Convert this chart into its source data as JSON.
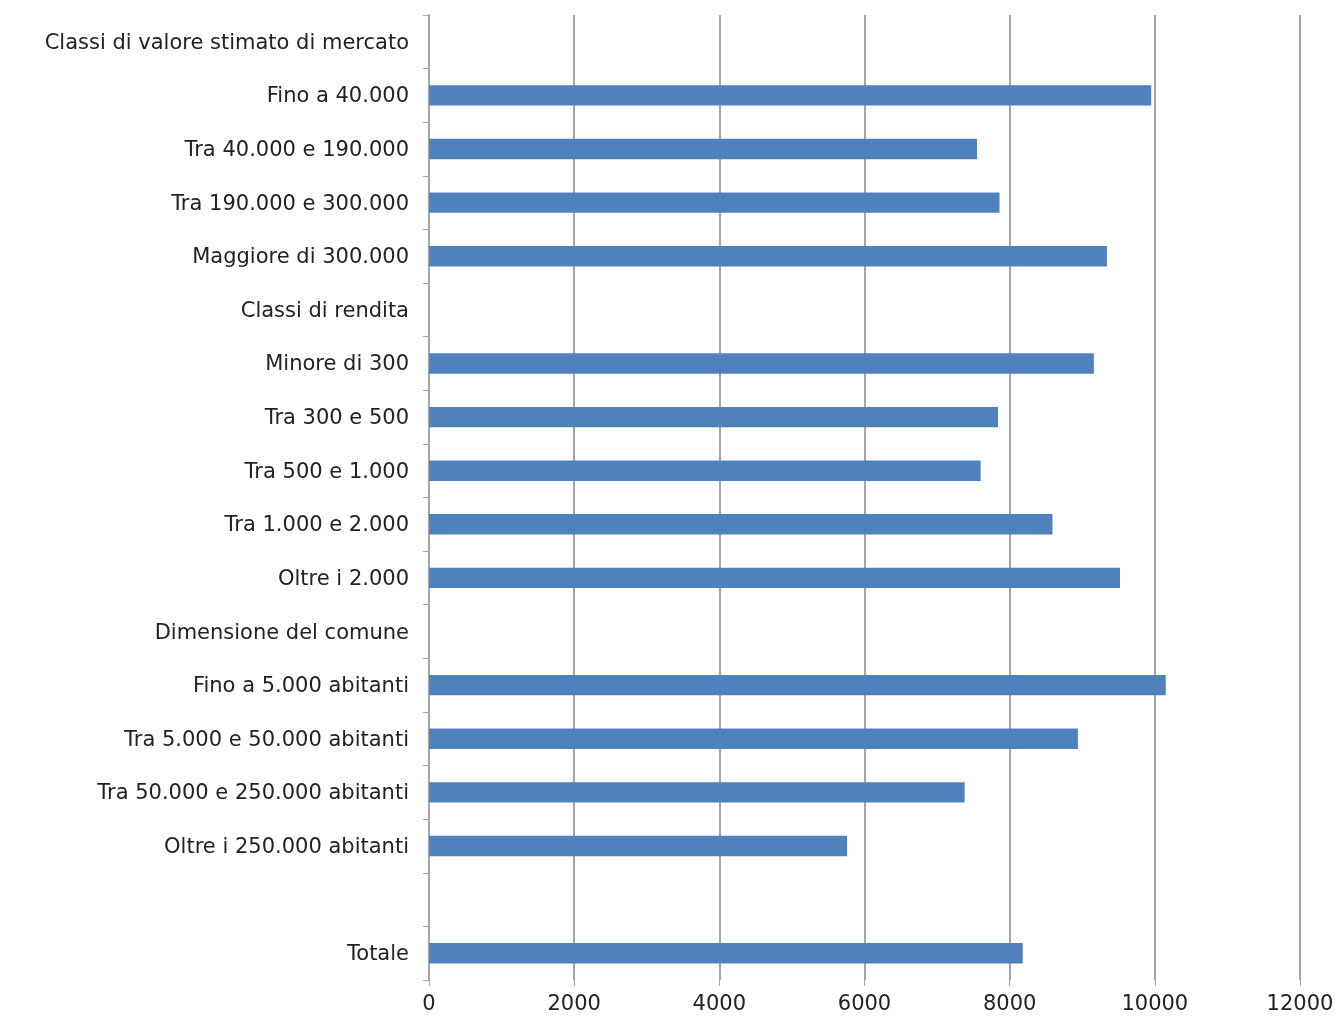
{
  "chart_data": {
    "type": "bar",
    "orientation": "horizontal",
    "categories": [
      "Classi di valore stimato di mercato",
      "Fino a 40.000",
      "Tra 40.000 e 190.000",
      "Tra 190.000 e 300.000",
      "Maggiore di 300.000",
      "Classi di rendita",
      "Minore di 300",
      "Tra 300 e 500",
      "Tra 500 e 1.000",
      "Tra 1.000 e 2.000",
      "Oltre i 2.000",
      "Dimensione del comune",
      "Fino a 5.000 abitanti",
      "Tra 5.000 e 50.000 abitanti",
      "Tra 50.000 e 250.000 abitanti",
      "Oltre i 250.000 abitanti",
      null,
      "Totale"
    ],
    "values": [
      null,
      9950,
      7550,
      7860,
      9340,
      null,
      9160,
      7840,
      7600,
      8590,
      9520,
      null,
      10150,
      8940,
      7380,
      5760,
      null,
      8180
    ],
    "color": "#4f81bd",
    "xlim": [
      0,
      12000
    ],
    "xticks": [
      0,
      2000,
      4000,
      6000,
      8000,
      10000,
      12000
    ],
    "grid": "x"
  }
}
